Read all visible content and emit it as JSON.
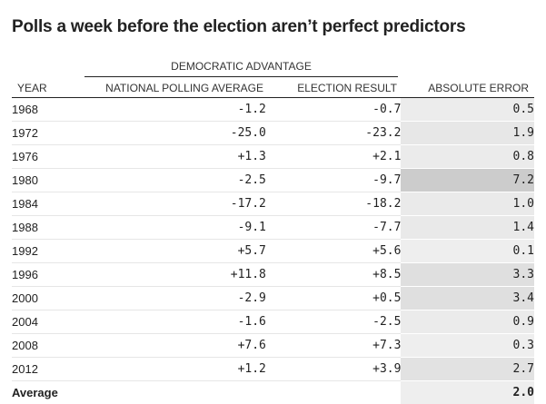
{
  "title": "Polls a week before the election aren’t perfect predictors",
  "group_header": "DEMOCRATIC ADVANTAGE",
  "columns": {
    "year": "YEAR",
    "polling": "NATIONAL POLLING AVERAGE",
    "result": "ELECTION RESULT",
    "error": "ABSOLUTE ERROR"
  },
  "rows": [
    {
      "year": "1968",
      "polling": "-1.2",
      "result": "-0.7",
      "error": "0.5",
      "shade": "#ececec"
    },
    {
      "year": "1972",
      "polling": "-25.0",
      "result": "-23.2",
      "error": "1.9",
      "shade": "#e7e7e7"
    },
    {
      "year": "1976",
      "polling": "+1.3",
      "result": "+2.1",
      "error": "0.8",
      "shade": "#ebebeb"
    },
    {
      "year": "1980",
      "polling": "-2.5",
      "result": "-9.7",
      "error": "7.2",
      "shade": "#cccccc"
    },
    {
      "year": "1984",
      "polling": "-17.2",
      "result": "-18.2",
      "error": "1.0",
      "shade": "#eaeaea"
    },
    {
      "year": "1988",
      "polling": "-9.1",
      "result": "-7.7",
      "error": "1.4",
      "shade": "#e9e9e9"
    },
    {
      "year": "1992",
      "polling": "+5.7",
      "result": "+5.6",
      "error": "0.1",
      "shade": "#eeeeee"
    },
    {
      "year": "1996",
      "polling": "+11.8",
      "result": "+8.5",
      "error": "3.3",
      "shade": "#dfdfdf"
    },
    {
      "year": "2000",
      "polling": "-2.9",
      "result": "+0.5",
      "error": "3.4",
      "shade": "#dfdfdf"
    },
    {
      "year": "2004",
      "polling": "-1.6",
      "result": "-2.5",
      "error": "0.9",
      "shade": "#ebebeb"
    },
    {
      "year": "2008",
      "polling": "+7.6",
      "result": "+7.3",
      "error": "0.3",
      "shade": "#eeeeee"
    },
    {
      "year": "2012",
      "polling": "+1.2",
      "result": "+3.9",
      "error": "2.7",
      "shade": "#e2e2e2"
    }
  ],
  "average": {
    "label": "Average",
    "error": "2.0",
    "shade": "#eeeeee"
  }
}
